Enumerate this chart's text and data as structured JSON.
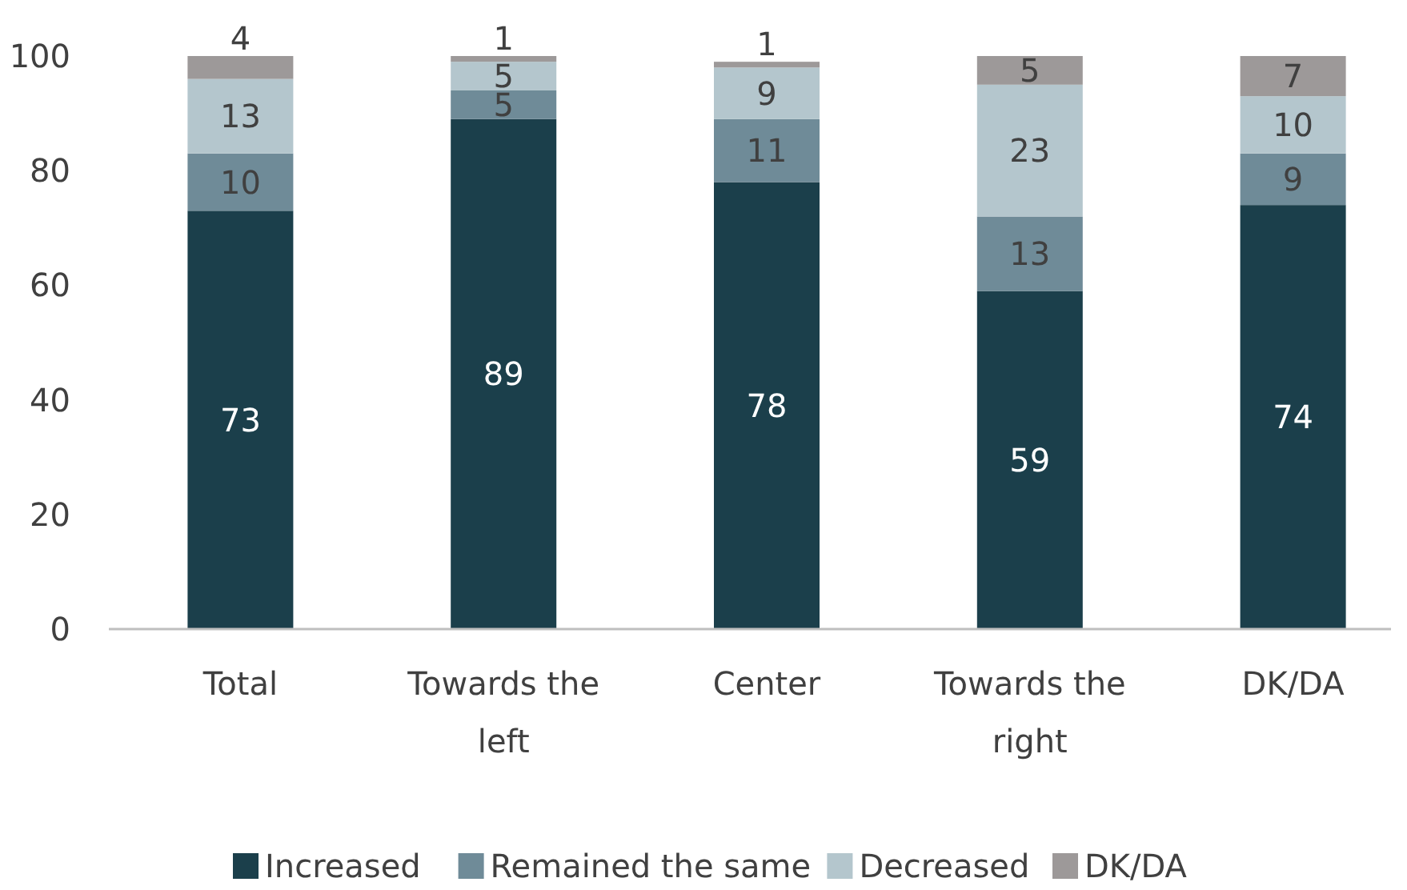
{
  "chart_data": {
    "type": "bar",
    "stacked": true,
    "data_labels": true,
    "legend": "bottom",
    "grid": false,
    "categories": [
      "Total",
      "Towards the left",
      "Center",
      "Towards the right",
      "DK/DA"
    ],
    "ylim": [
      0,
      100
    ],
    "yticks": [
      0,
      20,
      40,
      60,
      80,
      100
    ],
    "series": [
      {
        "name": "Increased",
        "color": "#1b3f4b",
        "values": [
          73,
          89,
          78,
          59,
          74
        ]
      },
      {
        "name": "Remained the same",
        "color": "#6f8b98",
        "values": [
          10,
          5,
          11,
          13,
          9
        ]
      },
      {
        "name": "Decreased",
        "color": "#b4c6cd",
        "values": [
          13,
          5,
          9,
          23,
          10
        ]
      },
      {
        "name": "DK/DA",
        "color": "#9d9999",
        "values": [
          4,
          1,
          1,
          5,
          7
        ]
      }
    ]
  }
}
